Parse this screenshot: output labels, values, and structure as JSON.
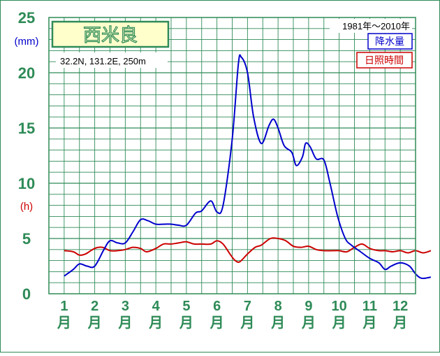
{
  "station": {
    "name": "西米良",
    "location": "32.2N, 131.2E, 250m",
    "period": "1981年〜2010年"
  },
  "colors": {
    "frame": "#2e8b57",
    "grid": "#2e8b57",
    "precip": "#0000cc",
    "sunshine": "#cc0000",
    "title_bg": "#ffffcc"
  },
  "chart_data": {
    "type": "line",
    "ylim": [
      0,
      25
    ],
    "yticks": [
      "0",
      "5",
      "10",
      "15",
      "20",
      "25"
    ],
    "units": {
      "precip": "(mm)",
      "sunshine": "(h)"
    },
    "months": [
      "1",
      "2",
      "3",
      "4",
      "5",
      "6",
      "7",
      "8",
      "9",
      "10",
      "11",
      "12"
    ],
    "month_suffix": "月",
    "series": [
      {
        "name": "降水量",
        "key": "precip",
        "x": [
          0.5,
          0.8,
          1.0,
          1.25,
          1.5,
          1.8,
          2.0,
          2.25,
          2.5,
          2.75,
          3.0,
          3.25,
          3.5,
          3.8,
          4.0,
          4.25,
          4.5,
          4.8,
          5.0,
          5.3,
          5.5,
          5.7,
          6.0,
          6.2,
          6.3,
          6.5,
          6.7,
          6.95,
          7.2,
          7.35,
          7.5,
          7.7,
          7.95,
          8.1,
          8.3,
          8.4,
          8.55,
          8.75,
          9.0,
          9.2,
          9.45,
          9.7,
          9.9,
          10.2,
          10.5,
          10.8,
          11.0,
          11.2,
          11.5,
          11.8,
          12.0,
          12.2,
          12.5
        ],
        "values": [
          1.6,
          2.2,
          2.7,
          2.5,
          2.5,
          4.0,
          4.8,
          4.6,
          4.6,
          5.6,
          6.7,
          6.6,
          6.3,
          6.3,
          6.3,
          6.2,
          6.2,
          7.3,
          7.5,
          8.4,
          7.4,
          8.0,
          14.0,
          20.8,
          21.4,
          20.0,
          16.0,
          13.6,
          15.2,
          15.8,
          15.0,
          13.4,
          12.8,
          11.6,
          12.4,
          13.6,
          13.3,
          12.2,
          12.1,
          10.0,
          7.0,
          5.0,
          4.4,
          3.8,
          3.2,
          2.8,
          2.2,
          2.5,
          2.8,
          2.5,
          1.8,
          1.4,
          1.5
        ]
      },
      {
        "name": "日照時間",
        "key": "sunshine",
        "x": [
          0.5,
          0.8,
          1.0,
          1.2,
          1.5,
          1.75,
          2.0,
          2.25,
          2.5,
          2.75,
          3.0,
          3.2,
          3.5,
          3.75,
          4.0,
          4.25,
          4.5,
          4.75,
          5.0,
          5.3,
          5.5,
          5.7,
          5.95,
          6.1,
          6.25,
          6.5,
          6.75,
          6.95,
          7.25,
          7.5,
          7.75,
          8.0,
          8.25,
          8.5,
          8.75,
          9.0,
          9.3,
          9.5,
          9.75,
          10.0,
          10.25,
          10.5,
          10.8,
          11.0,
          11.25,
          11.5,
          11.75,
          12.0,
          12.25,
          12.5
        ],
        "values": [
          3.9,
          3.8,
          3.5,
          3.6,
          4.1,
          4.2,
          3.9,
          3.9,
          4.0,
          4.2,
          4.1,
          3.8,
          4.1,
          4.5,
          4.5,
          4.6,
          4.7,
          4.5,
          4.5,
          4.5,
          4.8,
          4.5,
          3.5,
          3.0,
          2.9,
          3.6,
          4.2,
          4.4,
          5.0,
          5.0,
          4.8,
          4.3,
          4.2,
          4.3,
          4.0,
          3.9,
          3.9,
          3.9,
          3.8,
          4.2,
          4.5,
          4.1,
          3.9,
          3.9,
          3.8,
          3.9,
          3.7,
          3.9,
          3.7,
          3.9
        ]
      }
    ]
  }
}
